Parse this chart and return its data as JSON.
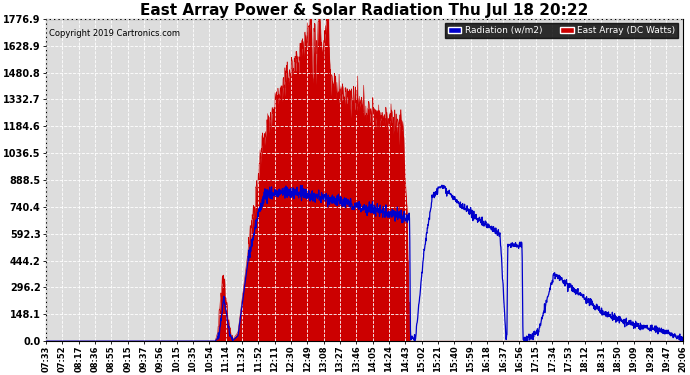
{
  "title": "East Array Power & Solar Radiation Thu Jul 18 20:22",
  "copyright": "Copyright 2019 Cartronics.com",
  "legend_radiation": "Radiation (w/m2)",
  "legend_east": "East Array (DC Watts)",
  "y_ticks": [
    0.0,
    148.1,
    296.2,
    444.2,
    592.3,
    740.4,
    888.5,
    1036.5,
    1184.6,
    1332.7,
    1480.8,
    1628.9,
    1776.9
  ],
  "x_labels": [
    "07:33",
    "07:52",
    "08:17",
    "08:36",
    "08:55",
    "09:15",
    "09:37",
    "09:56",
    "10:15",
    "10:35",
    "10:54",
    "11:14",
    "11:32",
    "11:52",
    "12:11",
    "12:30",
    "12:49",
    "13:08",
    "13:27",
    "13:46",
    "14:05",
    "14:24",
    "14:43",
    "15:02",
    "15:21",
    "15:40",
    "15:59",
    "16:18",
    "16:37",
    "16:56",
    "17:15",
    "17:34",
    "17:53",
    "18:12",
    "18:31",
    "18:50",
    "19:09",
    "19:28",
    "19:47",
    "20:06"
  ],
  "background_color": "#ffffff",
  "plot_bg_color": "#dddddd",
  "grid_color": "#ffffff",
  "radiation_fill_color": "#cc0000",
  "radiation_line_color": "#cc0000",
  "east_array_color": "#0000cc",
  "title_color": "#000000",
  "ymax": 1776.9,
  "ymin": 0.0,
  "title_fontsize": 11,
  "tick_fontsize": 7,
  "xlabel_fontsize": 6
}
